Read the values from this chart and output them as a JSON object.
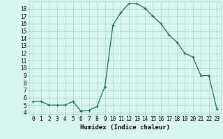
{
  "x": [
    0,
    1,
    2,
    3,
    4,
    5,
    6,
    7,
    8,
    9,
    10,
    11,
    12,
    13,
    14,
    15,
    16,
    17,
    18,
    19,
    20,
    21,
    22,
    23
  ],
  "y": [
    5.5,
    5.5,
    5.0,
    5.0,
    5.0,
    5.5,
    4.2,
    4.3,
    4.8,
    7.5,
    15.8,
    17.5,
    18.7,
    18.7,
    18.1,
    17.0,
    16.0,
    14.5,
    13.5,
    12.0,
    11.5,
    9.0,
    9.0,
    4.5
  ],
  "line_color": "#1a6b5a",
  "marker": "+",
  "marker_size": 3,
  "marker_linewidth": 0.8,
  "linewidth": 0.9,
  "background_color": "#d8f5f0",
  "grid_color": "#aed4cc",
  "xlabel": "Humidex (Indice chaleur)",
  "xlim": [
    -0.5,
    23.5
  ],
  "ylim": [
    3.8,
    19.0
  ],
  "xtick_labels": [
    "0",
    "1",
    "2",
    "3",
    "4",
    "5",
    "6",
    "7",
    "8",
    "9",
    "10",
    "11",
    "12",
    "13",
    "14",
    "15",
    "16",
    "17",
    "18",
    "19",
    "20",
    "21",
    "22",
    "23"
  ],
  "ytick_values": [
    4,
    5,
    6,
    7,
    8,
    9,
    10,
    11,
    12,
    13,
    14,
    15,
    16,
    17,
    18
  ],
  "tick_fontsize": 5.5,
  "label_fontsize": 6.5
}
